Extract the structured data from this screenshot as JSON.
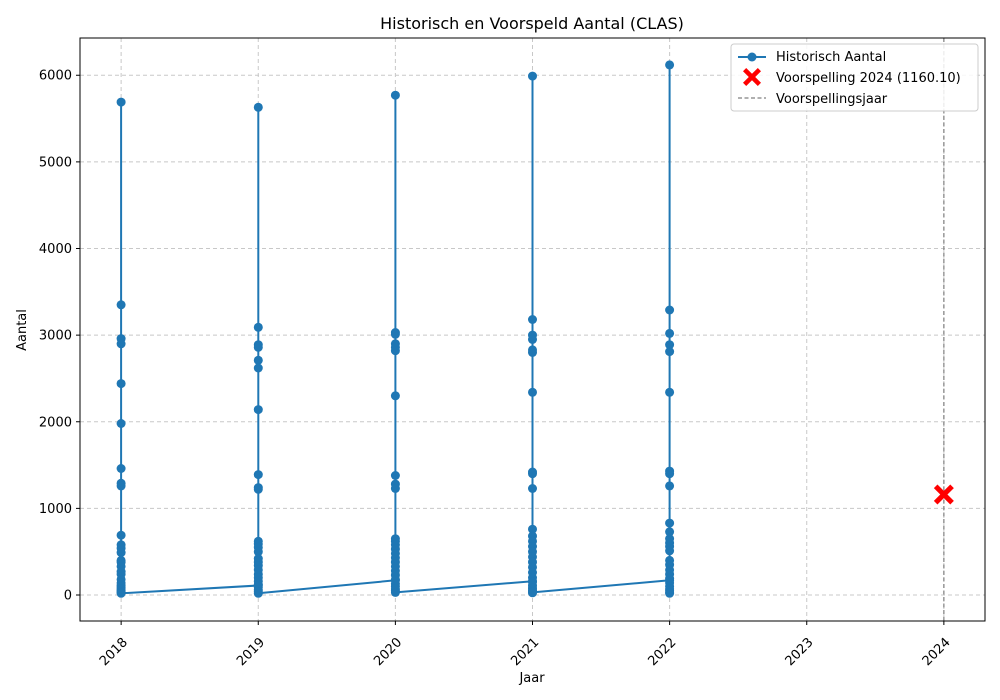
{
  "chart_data": {
    "type": "line",
    "title": "Historisch en Voorspeld Aantal (CLAS)",
    "xlabel": "Jaar",
    "ylabel": "Aantal",
    "xlim": [
      2017.7,
      2024.3
    ],
    "ylim": [
      -300,
      6430
    ],
    "xticks": [
      2018,
      2019,
      2020,
      2021,
      2022,
      2023,
      2024
    ],
    "yticks": [
      0,
      1000,
      2000,
      3000,
      4000,
      5000,
      6000
    ],
    "grid": true,
    "legend_position": "top-right",
    "colors": {
      "historical": "#1f77b4",
      "forecast": "#ff0000",
      "forecast_line": "#808080",
      "grid": "#c8c8c8"
    },
    "series": [
      {
        "name": "Historisch Aantal",
        "groups": [
          {
            "year": 2018,
            "values": [
              5690,
              3350,
              2960,
              2900,
              2440,
              1980,
              1460,
              1290,
              1260,
              690,
              580,
              540,
              490,
              400,
              380,
              330,
              270,
              240,
              180,
              140,
              110,
              90,
              70,
              55,
              40,
              30,
              20
            ]
          },
          {
            "year": 2019,
            "values": [
              110,
              5630,
              3090,
              2890,
              2860,
              2710,
              2620,
              2140,
              1390,
              1240,
              1220,
              620,
              590,
              550,
              500,
              420,
              380,
              340,
              290,
              240,
              200,
              160,
              120,
              90,
              60,
              40,
              20
            ]
          },
          {
            "year": 2020,
            "values": [
              170,
              5770,
              3030,
              3010,
              2900,
              2860,
              2820,
              2300,
              1380,
              1280,
              1230,
              650,
              620,
              580,
              530,
              480,
              430,
              380,
              330,
              280,
              230,
              180,
              130,
              100,
              70,
              50,
              30
            ]
          },
          {
            "year": 2021,
            "values": [
              160,
              5990,
              3180,
              3000,
              2950,
              2830,
              2800,
              2340,
              1420,
              1400,
              1230,
              760,
              680,
              620,
              560,
              500,
              440,
              380,
              320,
              260,
              200,
              150,
              110,
              80,
              55,
              40,
              25,
              30
            ]
          },
          {
            "year": 2022,
            "values": [
              170,
              6120,
              3290,
              3020,
              2890,
              2810,
              2340,
              1430,
              1400,
              1260,
              830,
              730,
              650,
              600,
              560,
              510,
              400,
              350,
              290,
              240,
              190,
              140,
              100,
              70,
              50,
              30,
              20
            ]
          }
        ]
      },
      {
        "name": "Voorspelling 2024 (1160.10)",
        "points": [
          {
            "x": 2024,
            "y": 1160.1
          }
        ]
      },
      {
        "name": "Voorspellingsjaar",
        "vline_x": 2024
      }
    ]
  }
}
